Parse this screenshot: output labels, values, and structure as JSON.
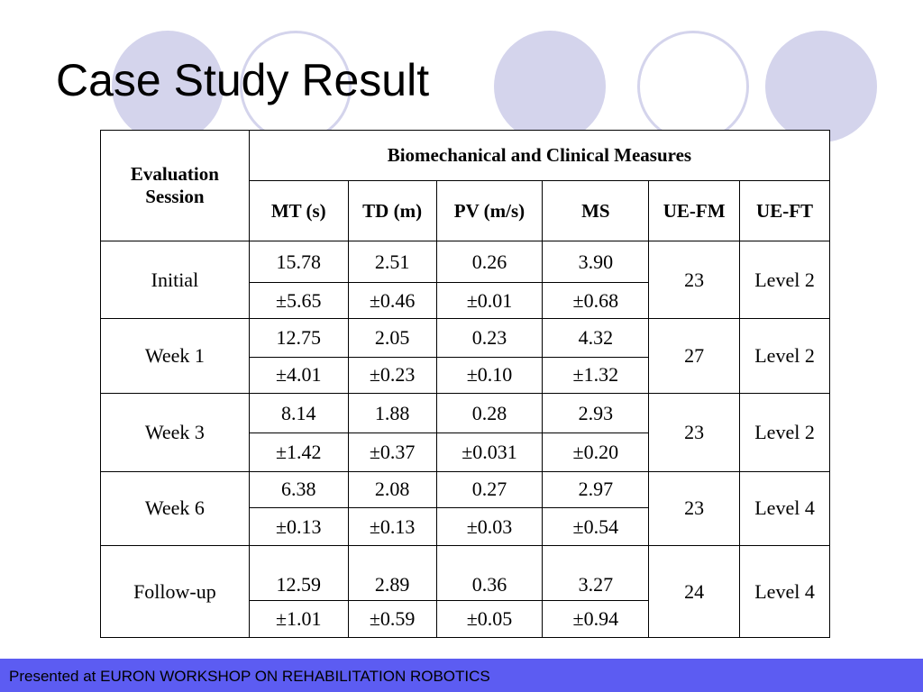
{
  "slide": {
    "title": "Case Study Result",
    "accent_color": "#d4d4ec",
    "footer_color": "#5c5cf2"
  },
  "table": {
    "session_header": "Evaluation Session",
    "group_header": "Biomechanical and Clinical  Measures",
    "columns": [
      "MT (s)",
      "TD (m)",
      "PV (m/s)",
      "MS",
      "UE-FM",
      "UE-FT"
    ],
    "rows": [
      {
        "session": "Initial",
        "mt": "15.78",
        "mt_sd": "±5.65",
        "td": "2.51",
        "td_sd": "±0.46",
        "pv": "0.26",
        "pv_sd": "±0.01",
        "ms": "3.90",
        "ms_sd": "±0.68",
        "uefm": "23",
        "ueft": "Level 2"
      },
      {
        "session": "Week 1",
        "mt": "12.75",
        "mt_sd": "±4.01",
        "td": "2.05",
        "td_sd": "±0.23",
        "pv": "0.23",
        "pv_sd": "±0.10",
        "ms": "4.32",
        "ms_sd": "±1.32",
        "uefm": "27",
        "ueft": "Level 2"
      },
      {
        "session": "Week 3",
        "mt": "8.14",
        "mt_sd": "±1.42",
        "td": "1.88",
        "td_sd": "±0.37",
        "pv": "0.28",
        "pv_sd": "±0.031",
        "ms": "2.93",
        "ms_sd": "±0.20",
        "uefm": "23",
        "ueft": "Level 2"
      },
      {
        "session": "Week 6",
        "mt": "6.38",
        "mt_sd": "±0.13",
        "td": "2.08",
        "td_sd": "±0.13",
        "pv": "0.27",
        "pv_sd": "±0.03",
        "ms": "2.97",
        "ms_sd": "±0.54",
        "uefm": "23",
        "ueft": "Level 4"
      },
      {
        "session": "Follow-up",
        "mt": "12.59",
        "mt_sd": "±1.01",
        "td": "2.89",
        "td_sd": "±0.59",
        "pv": "0.36",
        "pv_sd": "±0.05",
        "ms": "3.27",
        "ms_sd": "±0.94",
        "uefm": "24",
        "ueft": "Level 4"
      }
    ]
  },
  "footer": {
    "text": "Presented at EURON WORKSHOP ON REHABILITATION ROBOTICS"
  }
}
